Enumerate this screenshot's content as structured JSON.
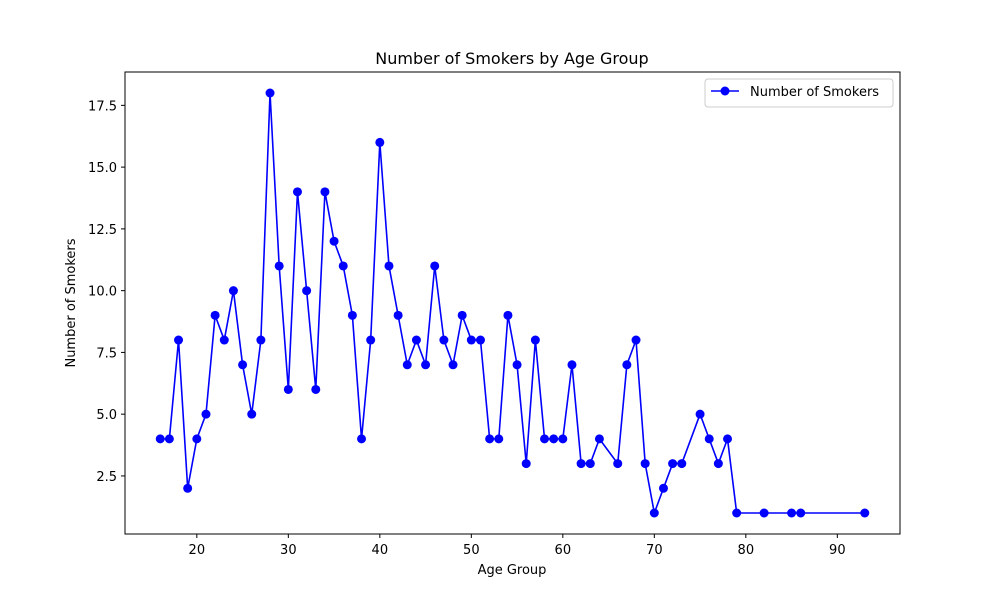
{
  "chart_data": {
    "type": "line",
    "title": "Number of Smokers by Age Group",
    "xlabel": "Age Group",
    "ylabel": "Number of Smokers",
    "xlim": [
      12.15,
      96.85
    ],
    "ylim": [
      0.15,
      18.85
    ],
    "xticks": [
      20,
      30,
      40,
      50,
      60,
      70,
      80,
      90
    ],
    "yticks": [
      2.5,
      5.0,
      7.5,
      10.0,
      12.5,
      15.0,
      17.5
    ],
    "xtick_labels": [
      "20",
      "30",
      "40",
      "50",
      "60",
      "70",
      "80",
      "90"
    ],
    "ytick_labels": [
      "2.5",
      "5.0",
      "7.5",
      "10.0",
      "12.5",
      "15.0",
      "17.5"
    ],
    "grid": false,
    "legend_position": "top-right",
    "color": "#0000ff",
    "series": [
      {
        "name": "Number of Smokers",
        "x": [
          16,
          17,
          18,
          19,
          20,
          21,
          22,
          23,
          24,
          25,
          26,
          27,
          28,
          29,
          30,
          31,
          32,
          33,
          34,
          35,
          36,
          37,
          38,
          39,
          40,
          41,
          42,
          43,
          44,
          45,
          46,
          47,
          48,
          49,
          50,
          51,
          52,
          53,
          54,
          55,
          56,
          57,
          58,
          59,
          60,
          61,
          62,
          63,
          64,
          66,
          67,
          68,
          69,
          70,
          71,
          72,
          73,
          75,
          76,
          77,
          78,
          79,
          82,
          85,
          86,
          93
        ],
        "y": [
          4,
          4,
          8,
          2,
          4,
          5,
          9,
          8,
          10,
          7,
          5,
          8,
          18,
          11,
          6,
          14,
          10,
          6,
          14,
          12,
          11,
          9,
          4,
          8,
          16,
          11,
          9,
          7,
          8,
          7,
          11,
          8,
          7,
          9,
          8,
          8,
          4,
          4,
          9,
          7,
          3,
          8,
          4,
          4,
          4,
          7,
          3,
          3,
          4,
          3,
          7,
          8,
          3,
          1,
          2,
          3,
          3,
          5,
          4,
          3,
          4,
          1,
          1,
          1,
          1,
          1
        ]
      }
    ]
  }
}
